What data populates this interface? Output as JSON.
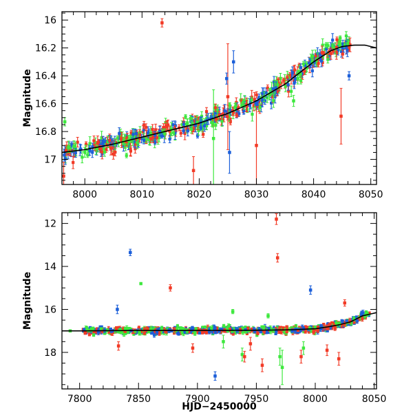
{
  "colors": {
    "red": "#f23a26",
    "blue": "#1c5fd9",
    "green": "#3ee83e",
    "model": "#000000"
  },
  "chart_data": [
    {
      "type": "scatter",
      "title": "",
      "xlabel": "",
      "ylabel": "Magnitude",
      "xlim": [
        7996,
        8051
      ],
      "ylim": [
        17.18,
        15.94
      ],
      "y_inverted": true,
      "grid": false,
      "x_ticks": [
        8000,
        8010,
        8020,
        8030,
        8040,
        8050
      ],
      "x_minor_step": 2,
      "y_ticks": [
        16,
        16.2,
        16.4,
        16.6,
        16.8,
        17
      ],
      "y_minor_step": 0.05,
      "model_curve": {
        "color": "model",
        "x": [
          7996,
          8000,
          8005,
          8010,
          8015,
          8020,
          8025,
          8030,
          8035,
          8040,
          8043,
          8045,
          8047,
          8049,
          8051
        ],
        "y": [
          16.95,
          16.93,
          16.89,
          16.84,
          16.79,
          16.74,
          16.67,
          16.58,
          16.46,
          16.3,
          16.22,
          16.19,
          16.18,
          16.18,
          16.2
        ]
      },
      "outliers": [
        {
          "series": "red",
          "x": 8013.5,
          "y": 16.02,
          "err": 0.03
        },
        {
          "series": "red",
          "x": 8025.0,
          "y": 16.55,
          "err": 0.38
        },
        {
          "series": "red",
          "x": 8030.0,
          "y": 16.9,
          "err": 0.28
        },
        {
          "series": "red",
          "x": 8044.8,
          "y": 16.69,
          "err": 0.2
        },
        {
          "series": "red",
          "x": 8019.0,
          "y": 17.08,
          "err": 0.1
        },
        {
          "series": "red",
          "x": 7996.3,
          "y": 17.12,
          "err": 0.1
        },
        {
          "series": "green",
          "x": 8022.5,
          "y": 16.85,
          "err": 0.35
        },
        {
          "series": "green",
          "x": 8036.5,
          "y": 16.58,
          "err": 0.04
        },
        {
          "series": "green",
          "x": 7996.5,
          "y": 16.73,
          "err": 0.03
        },
        {
          "series": "blue",
          "x": 8025.3,
          "y": 16.95,
          "err": 0.15
        },
        {
          "series": "blue",
          "x": 8046.2,
          "y": 16.4,
          "err": 0.03
        },
        {
          "series": "blue",
          "x": 8024.8,
          "y": 16.42,
          "err": 0.04
        },
        {
          "series": "blue",
          "x": 8026.0,
          "y": 16.3,
          "err": 0.08
        }
      ]
    },
    {
      "type": "scatter",
      "title": "",
      "xlabel": "HJD−2450000",
      "ylabel": "Magnitude",
      "xlim": [
        7785,
        8052
      ],
      "ylim": [
        19.7,
        11.5
      ],
      "y_inverted": true,
      "grid": false,
      "x_ticks": [
        7800,
        7850,
        7900,
        7950,
        8000,
        8050
      ],
      "x_minor_step": 10,
      "y_ticks": [
        12,
        14,
        16,
        18
      ],
      "y_minor_step": 0.5,
      "model_curve": {
        "color": "model",
        "x": [
          7785,
          7800,
          7850,
          7900,
          7950,
          7980,
          8000,
          8010,
          8020,
          8030,
          8040,
          8052
        ],
        "y": [
          17.0,
          17.0,
          16.98,
          16.98,
          16.97,
          16.95,
          16.9,
          16.82,
          16.72,
          16.58,
          16.3,
          16.15
        ]
      },
      "outliers": [
        {
          "series": "red",
          "x": 7967,
          "y": 11.8,
          "err": 0.25
        },
        {
          "series": "red",
          "x": 7968,
          "y": 13.6,
          "err": 0.2
        },
        {
          "series": "red",
          "x": 7877,
          "y": 15.0,
          "err": 0.15
        },
        {
          "series": "blue",
          "x": 7843,
          "y": 13.35,
          "err": 0.15
        },
        {
          "series": "blue",
          "x": 7996,
          "y": 15.1,
          "err": 0.2
        },
        {
          "series": "blue",
          "x": 7832,
          "y": 16.0,
          "err": 0.2
        },
        {
          "series": "blue",
          "x": 7915,
          "y": 19.1,
          "err": 0.2
        },
        {
          "series": "green",
          "x": 7852,
          "y": 14.8,
          "err": 0.05
        },
        {
          "series": "green",
          "x": 7972,
          "y": 18.7,
          "err": 0.8
        },
        {
          "series": "green",
          "x": 7970,
          "y": 18.2,
          "err": 0.4
        },
        {
          "series": "green",
          "x": 7938,
          "y": 18.1,
          "err": 0.3
        },
        {
          "series": "red",
          "x": 7955,
          "y": 18.6,
          "err": 0.3
        },
        {
          "series": "red",
          "x": 7988,
          "y": 18.2,
          "err": 0.3
        },
        {
          "series": "red",
          "x": 8020,
          "y": 18.3,
          "err": 0.3
        },
        {
          "series": "red",
          "x": 7833,
          "y": 17.7,
          "err": 0.2
        },
        {
          "series": "red",
          "x": 7896,
          "y": 17.8,
          "err": 0.2
        },
        {
          "series": "red",
          "x": 7940,
          "y": 18.2,
          "err": 0.25
        },
        {
          "series": "red",
          "x": 8025,
          "y": 15.7,
          "err": 0.15
        },
        {
          "series": "red",
          "x": 8010,
          "y": 17.9,
          "err": 0.25
        },
        {
          "series": "green",
          "x": 7930,
          "y": 16.1,
          "err": 0.1
        },
        {
          "series": "green",
          "x": 7960,
          "y": 16.3,
          "err": 0.1
        },
        {
          "series": "green",
          "x": 7810,
          "y": 16.9,
          "err": 0.05
        },
        {
          "series": "green",
          "x": 7792,
          "y": 17.0,
          "err": 0.03
        },
        {
          "series": "blue",
          "x": 7878,
          "y": 17.0,
          "err": 0.05
        },
        {
          "series": "green",
          "x": 7990,
          "y": 17.8,
          "err": 0.3
        },
        {
          "series": "red",
          "x": 7945,
          "y": 17.6,
          "err": 0.3
        },
        {
          "series": "green",
          "x": 7922,
          "y": 17.5,
          "err": 0.3
        }
      ]
    }
  ]
}
